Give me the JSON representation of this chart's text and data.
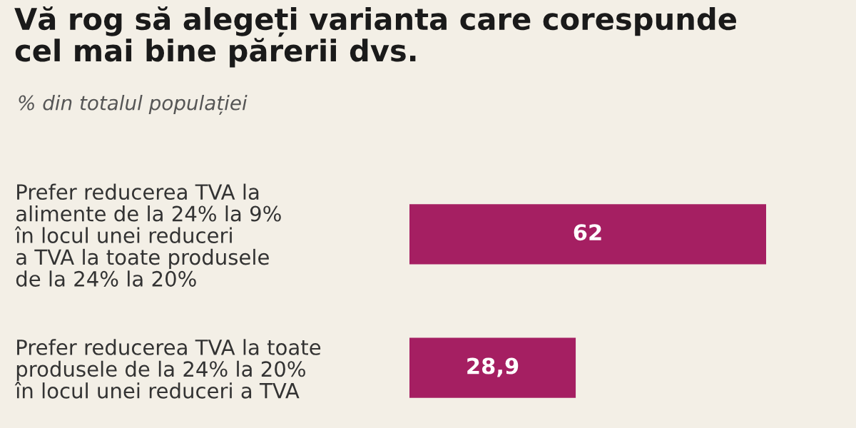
{
  "chart_data": {
    "type": "bar",
    "orientation": "horizontal",
    "title": "Vă rog să alegeți varianta care corespunde\ncel mai bine părerii dvs.",
    "subtitle": "% din totalul populației",
    "categories": [
      "Prefer reducerea TVA la\nalimente de la 24% la 9%\nîn locul unei reduceri\na TVA la toate produsele\nde la 24% la 20%",
      "Prefer reducerea TVA la toate\nprodusele de la 24% la 20%\nîn locul unei reduceri a TVA"
    ],
    "values": [
      62,
      28.9
    ],
    "value_labels": [
      "62",
      "28,9"
    ],
    "color": "#a51f62",
    "grid": false
  }
}
